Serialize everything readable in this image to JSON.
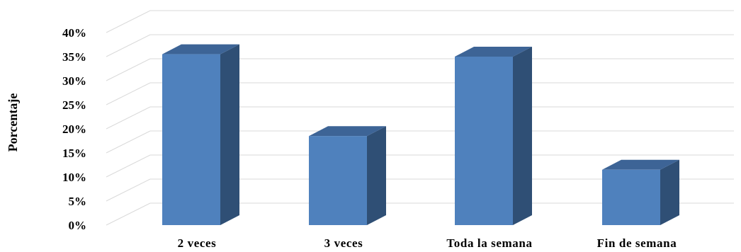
{
  "chart_data": {
    "type": "bar",
    "style": "3d-column",
    "title": "",
    "xlabel": "",
    "ylabel": "Porcentaje",
    "categories": [
      "2 veces",
      "3 veces",
      "Toda la semana",
      "Fin de semana"
    ],
    "values": [
      0.355,
      0.185,
      0.35,
      0.115
    ],
    "ylim": [
      0,
      0.4
    ],
    "ytick_labels": [
      "0%",
      "5%",
      "10%",
      "15%",
      "20%",
      "25%",
      "30%",
      "35%",
      "40%"
    ],
    "grid": true,
    "legend": "none",
    "colors": {
      "front": "#4f81bd",
      "side": "#2f4f75",
      "top": "#3d6496",
      "grid": "#d9d9d9"
    }
  }
}
